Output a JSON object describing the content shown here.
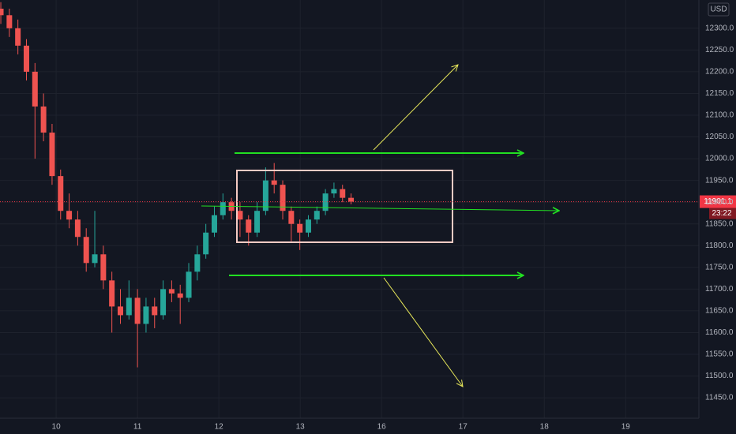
{
  "chart_data": {
    "type": "candlestick",
    "currency": "USD",
    "last_price": 11901.1,
    "last_price_label": "11901.1",
    "countdown": "23:22",
    "up_color": "#26a69a",
    "down_color": "#ef5350",
    "x": [
      -0.68,
      -0.575,
      -0.47,
      -0.365,
      -0.26,
      -0.155,
      -0.05,
      0.055,
      0.16,
      0.265,
      0.37,
      0.475,
      0.58,
      0.685,
      0.79,
      0.895,
      1.0,
      1.105,
      1.21,
      1.315,
      1.42,
      1.525,
      1.63,
      1.735,
      1.84,
      1.945,
      2.05,
      2.155,
      2.26,
      2.365,
      2.47,
      2.575,
      2.68,
      2.785,
      2.89,
      2.995,
      3.1,
      3.205,
      3.31,
      3.415,
      3.52,
      3.625
    ],
    "open": [
      12345,
      12330,
      12300,
      12260,
      12200,
      12120,
      12060,
      11960,
      11880,
      11860,
      11820,
      11760,
      11780,
      11720,
      11660,
      11640,
      11680,
      11620,
      11660,
      11640,
      11700,
      11690,
      11680,
      11740,
      11780,
      11830,
      11870,
      11900,
      11880,
      11860,
      11830,
      11880,
      11950,
      11940,
      11880,
      11850,
      11830,
      11860,
      11880,
      11920,
      11930,
      11910
    ],
    "high": [
      12360,
      12345,
      12320,
      12275,
      12220,
      12150,
      12080,
      11975,
      11920,
      11880,
      11840,
      11880,
      11800,
      11740,
      11700,
      11720,
      11700,
      11680,
      11680,
      11720,
      11720,
      11710,
      11760,
      11800,
      11850,
      11890,
      11920,
      11910,
      11900,
      11870,
      11900,
      11980,
      11990,
      11950,
      11890,
      11860,
      11870,
      11890,
      11930,
      11945,
      11940,
      11920
    ],
    "low": [
      12310,
      12280,
      12240,
      12180,
      12000,
      12040,
      11940,
      11860,
      11840,
      11800,
      11740,
      11750,
      11700,
      11600,
      11620,
      11630,
      11520,
      11600,
      11610,
      11630,
      11670,
      11620,
      11670,
      11720,
      11770,
      11820,
      11860,
      11860,
      11820,
      11800,
      11820,
      11870,
      11920,
      11860,
      11810,
      11790,
      11820,
      11850,
      11870,
      11910,
      11900,
      11895
    ],
    "close": [
      12330,
      12300,
      12260,
      12200,
      12120,
      12060,
      11960,
      11880,
      11860,
      11820,
      11760,
      11780,
      11720,
      11660,
      11640,
      11680,
      11620,
      11660,
      11640,
      11700,
      11690,
      11680,
      11740,
      11780,
      11830,
      11870,
      11900,
      11880,
      11860,
      11830,
      11880,
      11950,
      11940,
      11880,
      11850,
      11830,
      11860,
      11880,
      11920,
      11930,
      11910,
      11901.1
    ],
    "xlim": [
      -0.69,
      7.9
    ],
    "xticks": [
      {
        "value": 0,
        "label": "10"
      },
      {
        "value": 1,
        "label": "11"
      },
      {
        "value": 2,
        "label": "12"
      },
      {
        "value": 3,
        "label": "13"
      },
      {
        "value": 4,
        "label": "16"
      },
      {
        "value": 5,
        "label": "17"
      },
      {
        "value": 6,
        "label": "18"
      },
      {
        "value": 7,
        "label": "19"
      }
    ],
    "ylim": [
      11403,
      12365
    ],
    "yticks": [
      {
        "value": 11450,
        "label": "11450.0"
      },
      {
        "value": 11500,
        "label": "11500.0"
      },
      {
        "value": 11550,
        "label": "11550.0"
      },
      {
        "value": 11600,
        "label": "11600.0"
      },
      {
        "value": 11650,
        "label": "11650.0"
      },
      {
        "value": 11700,
        "label": "11700.0"
      },
      {
        "value": 11750,
        "label": "11750.0"
      },
      {
        "value": 11800,
        "label": "11800.0"
      },
      {
        "value": 11850,
        "label": "11850.0"
      },
      {
        "value": 11900,
        "label": "11900.0"
      },
      {
        "value": 11950,
        "label": "11950.0"
      },
      {
        "value": 12000,
        "label": "12000.0"
      },
      {
        "value": 12050,
        "label": "12050.0"
      },
      {
        "value": 12100,
        "label": "12100.0"
      },
      {
        "value": 12150,
        "label": "12150.0"
      },
      {
        "value": 12200,
        "label": "12200.0"
      },
      {
        "value": 12250,
        "label": "12250.0"
      },
      {
        "value": 12300,
        "label": "12300.0"
      }
    ],
    "grid": true
  }
}
